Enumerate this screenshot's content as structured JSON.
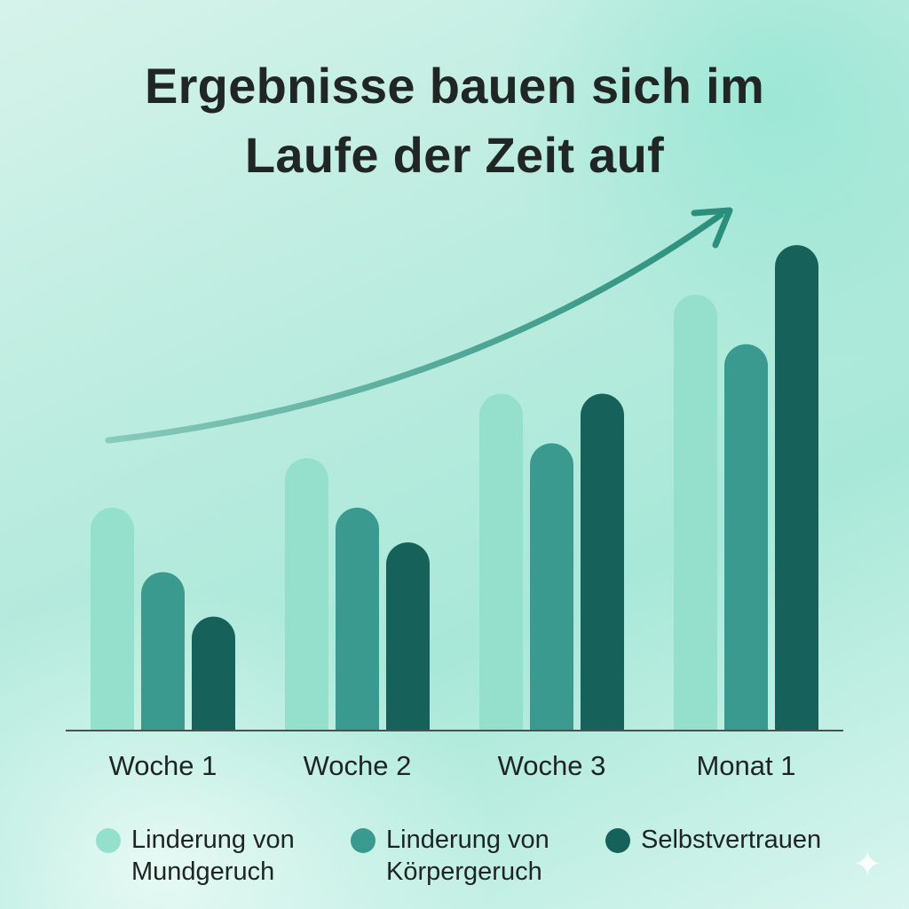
{
  "title_lines": [
    "Ergebnisse bauen sich im",
    "Laufe der Zeit auf"
  ],
  "chart_data": {
    "type": "bar",
    "title": "Ergebnisse bauen sich im Laufe der Zeit auf",
    "categories": [
      "Woche 1",
      "Woche 2",
      "Woche 3",
      "Monat 1"
    ],
    "series": [
      {
        "name": "Linderung von Mundgeruch",
        "color": "#94e0cc",
        "values": [
          45,
          55,
          68,
          88
        ]
      },
      {
        "name": "Linderung von Körpergeruch",
        "color": "#3a9a90",
        "values": [
          32,
          45,
          58,
          78
        ]
      },
      {
        "name": "Selbstvertrauen",
        "color": "#17615b",
        "values": [
          23,
          38,
          68,
          98
        ]
      }
    ],
    "ylim": [
      0,
      100
    ],
    "grid": false,
    "legend_position": "bottom",
    "trend_arrow": "upward"
  },
  "legend": [
    {
      "line1": "Linderung von",
      "line2": "Mundgeruch",
      "color": "#94e0cc"
    },
    {
      "line1": "Linderung von",
      "line2": "Körpergeruch",
      "color": "#3a9a90"
    },
    {
      "line1": "Selbstvertrauen",
      "line2": "",
      "color": "#17615b"
    }
  ],
  "colors": {
    "baseline": "#4a5250",
    "arrow": "#2c8e7c",
    "text": "#202623"
  },
  "icons": {
    "corner": "sparkle-icon"
  }
}
